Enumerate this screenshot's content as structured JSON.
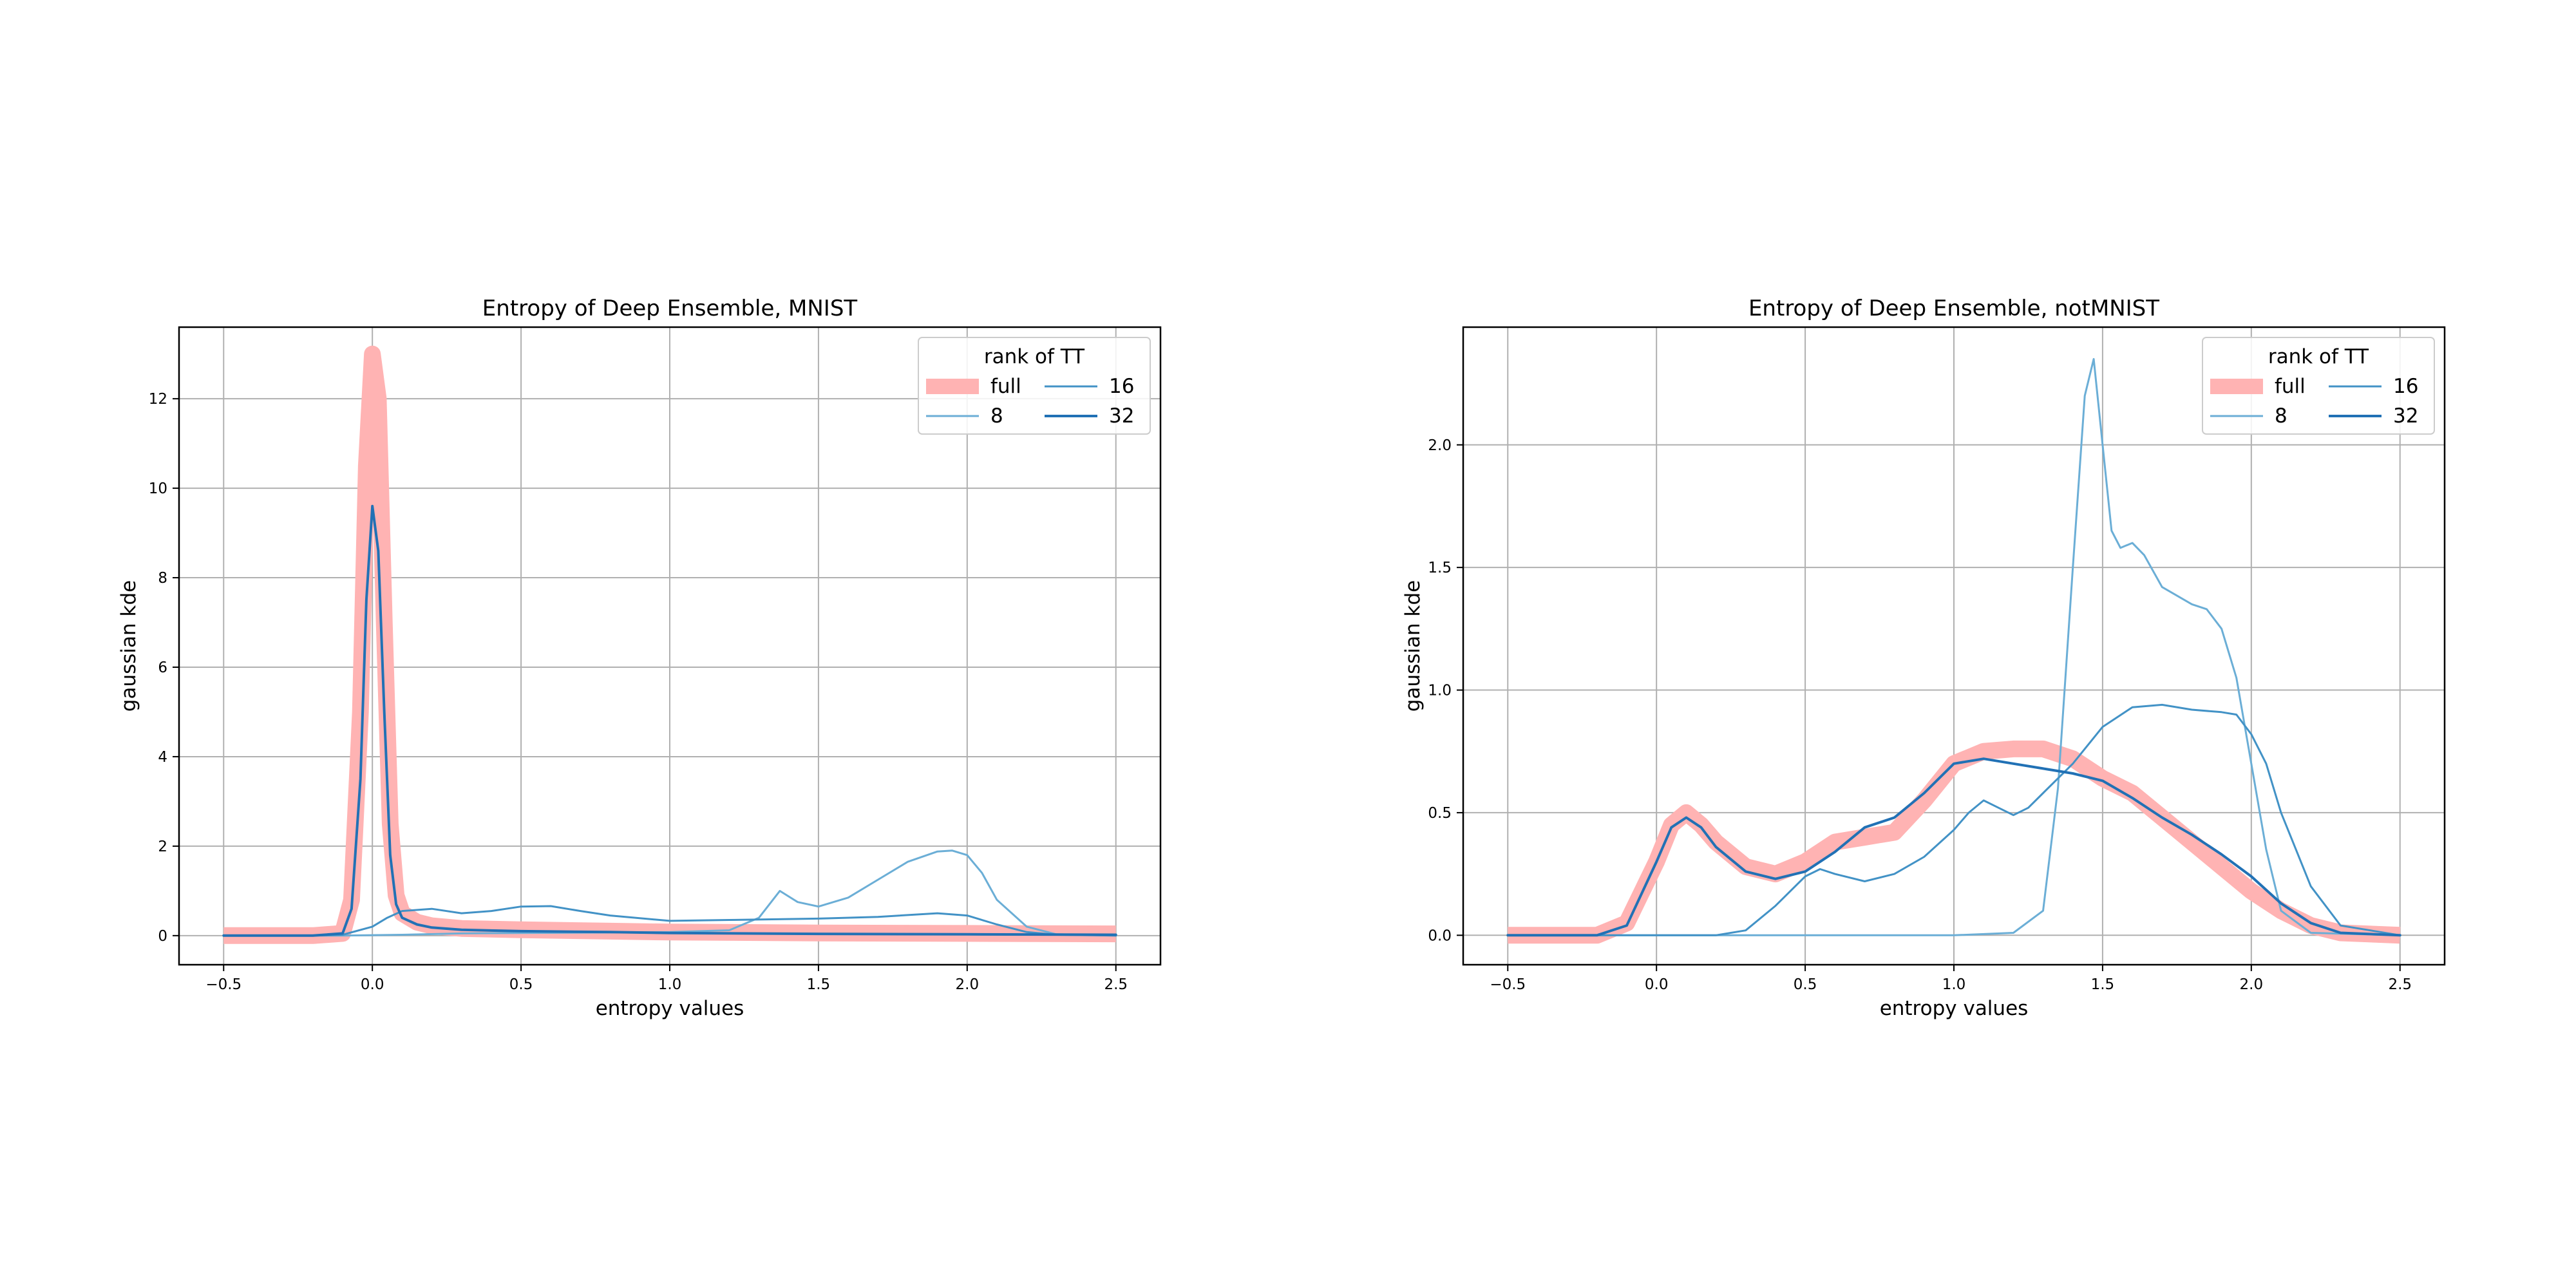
{
  "chart_data": [
    {
      "type": "line",
      "title": "Entropy of Deep Ensemble, MNIST",
      "xlabel": "entropy values",
      "ylabel": "gaussian kde",
      "xlim": [
        -0.65,
        2.65
      ],
      "ylim": [
        -0.65,
        13.6
      ],
      "xticks": [
        -0.5,
        0.0,
        0.5,
        1.0,
        1.5,
        2.0,
        2.5
      ],
      "xtick_labels": [
        "−0.5",
        "0.0",
        "0.5",
        "1.0",
        "1.5",
        "2.0",
        "2.5"
      ],
      "yticks": [
        0,
        2,
        4,
        6,
        8,
        10,
        12
      ],
      "ytick_labels": [
        "0",
        "2",
        "4",
        "6",
        "8",
        "10",
        "12"
      ],
      "grid": true,
      "legend": {
        "title": "rank of TT",
        "placement": "upper right",
        "ncol": 2
      },
      "series": [
        {
          "name": "full",
          "color": "#ffb3b3",
          "style": "thick",
          "x": [
            -0.5,
            -0.2,
            -0.1,
            -0.07,
            -0.04,
            -0.02,
            0.0,
            0.02,
            0.04,
            0.06,
            0.08,
            0.1,
            0.15,
            0.2,
            0.3,
            0.5,
            0.8,
            1.0,
            1.5,
            2.0,
            2.5
          ],
          "y": [
            0,
            0,
            0.05,
            0.8,
            5.0,
            10.5,
            13.0,
            12.0,
            7.0,
            2.5,
            0.9,
            0.5,
            0.3,
            0.22,
            0.16,
            0.13,
            0.1,
            0.08,
            0.06,
            0.05,
            0.04
          ]
        },
        {
          "name": "8",
          "color": "#6baed6",
          "style": "thin",
          "x": [
            -0.5,
            -0.2,
            -0.1,
            0.0,
            0.1,
            0.3,
            0.5,
            0.8,
            1.0,
            1.2,
            1.3,
            1.37,
            1.43,
            1.5,
            1.6,
            1.7,
            1.8,
            1.9,
            1.95,
            2.0,
            2.05,
            2.1,
            2.2,
            2.3,
            2.5
          ],
          "y": [
            0,
            0,
            0,
            0.01,
            0.02,
            0.05,
            0.06,
            0.07,
            0.08,
            0.12,
            0.4,
            1.0,
            0.75,
            0.65,
            0.85,
            1.25,
            1.65,
            1.88,
            1.9,
            1.8,
            1.4,
            0.8,
            0.2,
            0.03,
            0
          ]
        },
        {
          "name": "16",
          "color": "#4292c6",
          "style": "thin",
          "x": [
            -0.5,
            -0.2,
            -0.1,
            0.0,
            0.05,
            0.1,
            0.2,
            0.3,
            0.4,
            0.5,
            0.6,
            0.7,
            0.8,
            1.0,
            1.2,
            1.5,
            1.7,
            1.9,
            2.0,
            2.1,
            2.2,
            2.3,
            2.5
          ],
          "y": [
            0,
            0,
            0.02,
            0.2,
            0.4,
            0.55,
            0.6,
            0.5,
            0.55,
            0.65,
            0.66,
            0.55,
            0.45,
            0.33,
            0.35,
            0.38,
            0.42,
            0.5,
            0.45,
            0.25,
            0.08,
            0.02,
            0
          ]
        },
        {
          "name": "32",
          "color": "#2171b5",
          "style": "medium",
          "x": [
            -0.5,
            -0.2,
            -0.1,
            -0.07,
            -0.04,
            -0.02,
            0.0,
            0.02,
            0.04,
            0.06,
            0.08,
            0.1,
            0.15,
            0.2,
            0.3,
            0.5,
            0.8,
            1.0,
            1.5,
            2.0,
            2.5
          ],
          "y": [
            0,
            0,
            0.05,
            0.6,
            3.5,
            7.5,
            9.6,
            8.6,
            5.0,
            1.8,
            0.7,
            0.4,
            0.25,
            0.18,
            0.13,
            0.1,
            0.08,
            0.06,
            0.04,
            0.03,
            0.02
          ]
        }
      ]
    },
    {
      "type": "line",
      "title": "Entropy of Deep Ensemble, notMNIST",
      "xlabel": "entropy values",
      "ylabel": "gaussian kde",
      "xlim": [
        -0.65,
        2.65
      ],
      "ylim": [
        -0.12,
        2.48
      ],
      "xticks": [
        -0.5,
        0.0,
        0.5,
        1.0,
        1.5,
        2.0,
        2.5
      ],
      "xtick_labels": [
        "−0.5",
        "0.0",
        "0.5",
        "1.0",
        "1.5",
        "2.0",
        "2.5"
      ],
      "yticks": [
        0.0,
        0.5,
        1.0,
        1.5,
        2.0
      ],
      "ytick_labels": [
        "0.0",
        "0.5",
        "1.0",
        "1.5",
        "2.0"
      ],
      "grid": true,
      "legend": {
        "title": "rank of TT",
        "placement": "upper right",
        "ncol": 2
      },
      "series": [
        {
          "name": "full",
          "color": "#ffb3b3",
          "style": "thick",
          "x": [
            -0.5,
            -0.2,
            -0.1,
            0.0,
            0.05,
            0.1,
            0.15,
            0.2,
            0.3,
            0.4,
            0.5,
            0.6,
            0.7,
            0.8,
            0.9,
            1.0,
            1.1,
            1.2,
            1.3,
            1.4,
            1.5,
            1.6,
            1.7,
            1.8,
            1.9,
            2.0,
            2.1,
            2.2,
            2.3,
            2.5
          ],
          "y": [
            0,
            0,
            0.05,
            0.3,
            0.45,
            0.5,
            0.45,
            0.38,
            0.28,
            0.25,
            0.3,
            0.38,
            0.4,
            0.42,
            0.55,
            0.7,
            0.75,
            0.76,
            0.76,
            0.72,
            0.64,
            0.58,
            0.48,
            0.38,
            0.28,
            0.18,
            0.1,
            0.04,
            0.01,
            0
          ]
        },
        {
          "name": "8",
          "color": "#6baed6",
          "style": "thin",
          "x": [
            -0.5,
            0.0,
            1.0,
            1.2,
            1.3,
            1.35,
            1.4,
            1.44,
            1.47,
            1.5,
            1.53,
            1.56,
            1.6,
            1.64,
            1.7,
            1.8,
            1.85,
            1.9,
            1.95,
            2.0,
            2.05,
            2.1,
            2.2,
            2.5
          ],
          "y": [
            0,
            0,
            0,
            0.01,
            0.1,
            0.6,
            1.5,
            2.2,
            2.35,
            2.0,
            1.65,
            1.58,
            1.6,
            1.55,
            1.42,
            1.35,
            1.33,
            1.25,
            1.05,
            0.7,
            0.35,
            0.1,
            0.01,
            0
          ]
        },
        {
          "name": "16",
          "color": "#4292c6",
          "style": "thin",
          "x": [
            -0.5,
            0.0,
            0.2,
            0.3,
            0.4,
            0.5,
            0.55,
            0.6,
            0.7,
            0.8,
            0.9,
            1.0,
            1.05,
            1.1,
            1.15,
            1.2,
            1.25,
            1.3,
            1.4,
            1.5,
            1.6,
            1.7,
            1.8,
            1.9,
            1.95,
            2.0,
            2.05,
            2.1,
            2.2,
            2.3,
            2.5
          ],
          "y": [
            0,
            0,
            0.0,
            0.02,
            0.12,
            0.24,
            0.27,
            0.25,
            0.22,
            0.25,
            0.32,
            0.43,
            0.5,
            0.55,
            0.52,
            0.49,
            0.52,
            0.58,
            0.7,
            0.85,
            0.93,
            0.94,
            0.92,
            0.91,
            0.9,
            0.82,
            0.7,
            0.5,
            0.2,
            0.04,
            0
          ]
        },
        {
          "name": "32",
          "color": "#2171b5",
          "style": "medium",
          "x": [
            -0.5,
            -0.2,
            -0.1,
            0.0,
            0.05,
            0.1,
            0.15,
            0.2,
            0.3,
            0.4,
            0.5,
            0.6,
            0.7,
            0.8,
            0.9,
            1.0,
            1.1,
            1.2,
            1.3,
            1.4,
            1.5,
            1.6,
            1.7,
            1.8,
            1.9,
            2.0,
            2.1,
            2.2,
            2.3,
            2.5
          ],
          "y": [
            0,
            0,
            0.04,
            0.3,
            0.44,
            0.48,
            0.44,
            0.36,
            0.26,
            0.23,
            0.26,
            0.34,
            0.44,
            0.48,
            0.58,
            0.7,
            0.72,
            0.7,
            0.68,
            0.66,
            0.63,
            0.56,
            0.48,
            0.41,
            0.33,
            0.24,
            0.13,
            0.05,
            0.01,
            0
          ]
        }
      ]
    }
  ]
}
